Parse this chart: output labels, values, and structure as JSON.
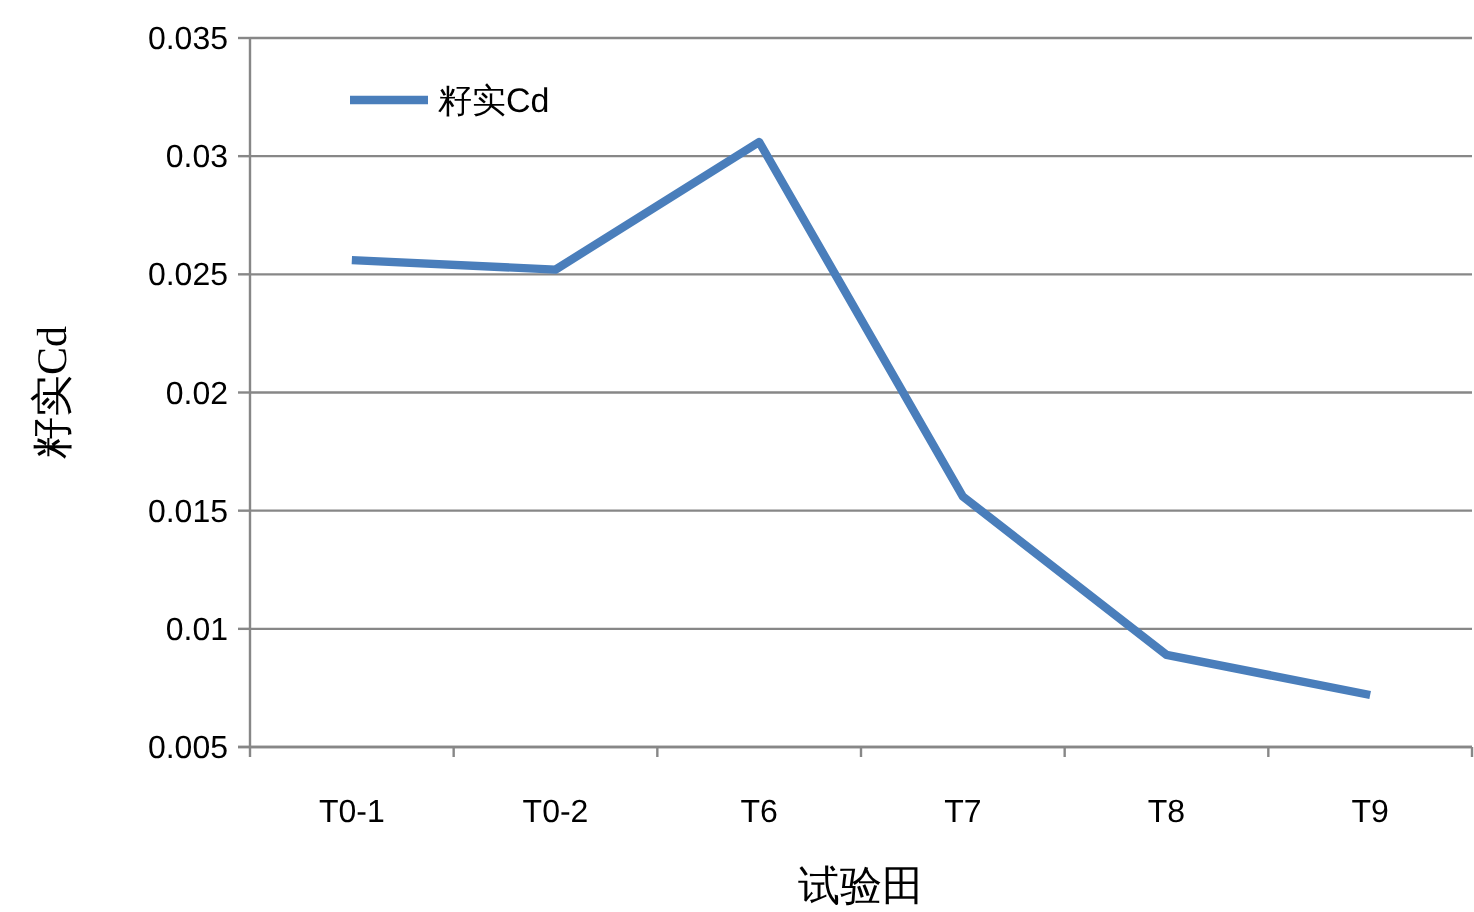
{
  "chart_data": {
    "type": "line",
    "xlabel": "试验田",
    "ylabel": "籽实Cd",
    "categories": [
      "T0-1",
      "T0-2",
      "T6",
      "T7",
      "T8",
      "T9"
    ],
    "series": [
      {
        "name": "籽实Cd",
        "color": "#4a7ebb",
        "values": [
          0.0256,
          0.0252,
          0.0306,
          0.0156,
          0.0089,
          0.0072
        ]
      }
    ],
    "ylim": [
      0.005,
      0.035
    ],
    "yticks": [
      0.005,
      0.01,
      0.015,
      0.02,
      0.025,
      0.03,
      0.035
    ],
    "grid": "y",
    "legend": "top left"
  }
}
